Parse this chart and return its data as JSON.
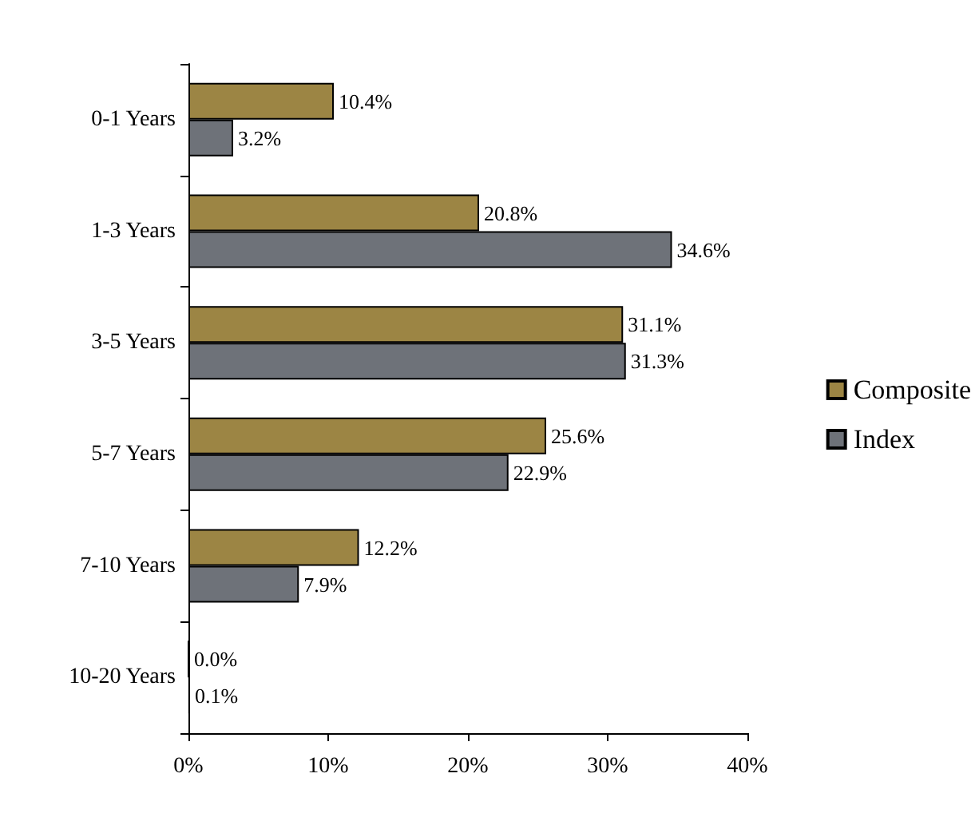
{
  "chart_data": {
    "type": "bar",
    "orientation": "horizontal",
    "categories": [
      "0-1 Years",
      "1-3 Years",
      "3-5 Years",
      "5-7 Years",
      "7-10 Years",
      "10-20 Years"
    ],
    "series": [
      {
        "name": "Composite",
        "color": "#9c8544",
        "values": [
          10.4,
          20.8,
          31.1,
          25.6,
          12.2,
          0.0
        ],
        "value_labels": [
          "10.4%",
          "20.8%",
          "31.1%",
          "25.6%",
          "12.2%",
          "0.0%"
        ]
      },
      {
        "name": "Index",
        "color": "#6e7279",
        "values": [
          3.2,
          34.6,
          31.3,
          22.9,
          7.9,
          0.1
        ],
        "value_labels": [
          "3.2%",
          "34.6%",
          "31.3%",
          "22.9%",
          "7.9%",
          "0.1%"
        ]
      }
    ],
    "xlim": [
      0,
      40
    ],
    "xticks": [
      {
        "value": 0,
        "label": "0%"
      },
      {
        "value": 10,
        "label": "10%"
      },
      {
        "value": 20,
        "label": "20%"
      },
      {
        "value": 30,
        "label": "30%"
      },
      {
        "value": 40,
        "label": "40%"
      }
    ],
    "grid": false,
    "legend": "right"
  }
}
